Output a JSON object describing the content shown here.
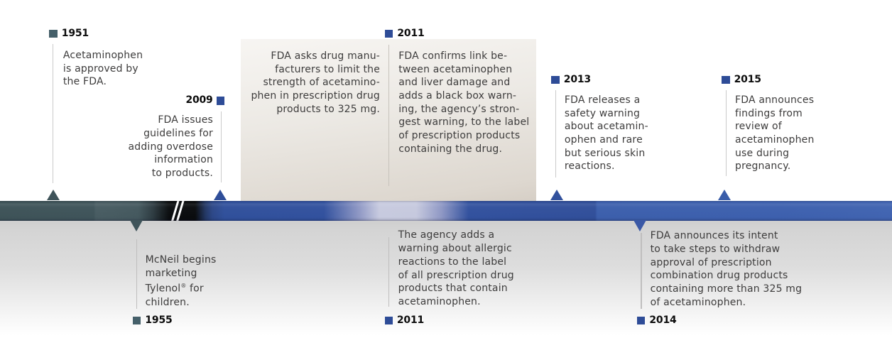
{
  "timeline": {
    "description": "FDA acetaminophen history timeline",
    "colors": {
      "band_teal": "#3f545a",
      "band_black": "#0a0c0e",
      "band_blue": "#32519e",
      "band_blue_light": "#3d60ae",
      "band_shine": "#c6c9de",
      "marker_teal": "#45606a",
      "marker_blue": "#2e4c97",
      "panel_beige_top": "#f7f5f2",
      "panel_beige_bottom": "#d6cfc6",
      "body_text": "#3d3c3c",
      "year_text": "#0c0c0c",
      "lower_gray": "#cbcbcb"
    },
    "events_top": [
      {
        "year": "1951",
        "lines": [
          "Acetaminophen",
          "is approved by",
          "the FDA."
        ]
      },
      {
        "year": "2009",
        "lines": [
          "FDA issues",
          "guidelines for",
          "adding overdose",
          "information",
          "to products."
        ]
      },
      {
        "year": "2011",
        "left_lines": [
          "FDA asks drug manu-",
          "facturers to limit the",
          "strength of acetamino-",
          "phen in prescription drug",
          "products to 325 mg."
        ],
        "right_lines": [
          "FDA confirms link be-",
          "tween acetaminophen",
          "and liver damage and",
          "adds a black box warn-",
          "ing, the agency’s stron-",
          "gest warning, to the label",
          "of prescription products",
          "containing the drug."
        ]
      },
      {
        "year": "2013",
        "lines": [
          "FDA releases a",
          "safety warning",
          "about acetamin-",
          "ophen and rare",
          "but serious skin",
          "reactions."
        ]
      },
      {
        "year": "2015",
        "lines": [
          "FDA announces",
          "findings from",
          "review of",
          "acetaminophen",
          "use during",
          "pregnancy."
        ]
      }
    ],
    "events_bottom": [
      {
        "year": "1955",
        "lines": [
          "McNeil begins",
          "marketing",
          "Tylenol® for",
          "children."
        ]
      },
      {
        "year": "2011",
        "lines": [
          "The agency adds a",
          "warning about allergic",
          "reactions to the label",
          "of all prescription drug",
          "products that contain",
          "acetaminophen."
        ]
      },
      {
        "year": "2014",
        "lines": [
          "FDA announces its intent",
          "to take steps to withdraw",
          "approval of prescription",
          "combination drug products",
          "containing more than 325 mg",
          "of acetaminophen."
        ]
      }
    ]
  }
}
